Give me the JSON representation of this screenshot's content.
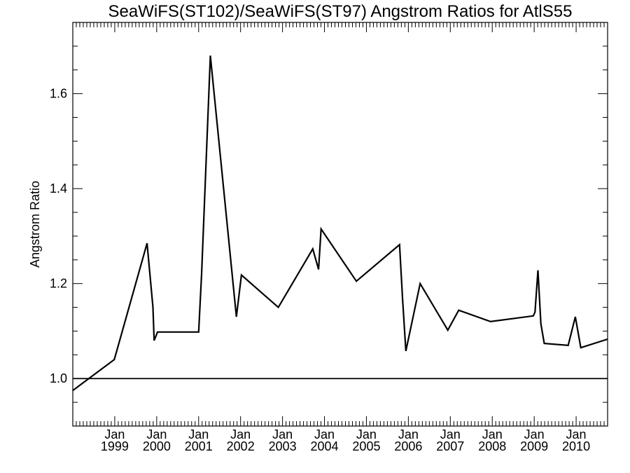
{
  "chart_data": {
    "type": "line",
    "title": "SeaWiFS(ST102)/SeaWiFS(ST97)  Angstrom Ratios for AtlS55",
    "xlabel": "",
    "ylabel": "Angstrom Ratio",
    "xlim": [
      1998.0,
      2010.75
    ],
    "ylim": [
      0.9,
      1.75
    ],
    "x_tick_labels": [
      {
        "month": "Jan",
        "year": "1999",
        "x": 1999.0
      },
      {
        "month": "Jan",
        "year": "2000",
        "x": 2000.0
      },
      {
        "month": "Jan",
        "year": "2001",
        "x": 2001.0
      },
      {
        "month": "Jan",
        "year": "2002",
        "x": 2002.0
      },
      {
        "month": "Jan",
        "year": "2003",
        "x": 2003.0
      },
      {
        "month": "Jan",
        "year": "2004",
        "x": 2004.0
      },
      {
        "month": "Jan",
        "year": "2005",
        "x": 2005.0
      },
      {
        "month": "Jan",
        "year": "2006",
        "x": 2006.0
      },
      {
        "month": "Jan",
        "year": "2007",
        "x": 2007.0
      },
      {
        "month": "Jan",
        "year": "2008",
        "x": 2008.0
      },
      {
        "month": "Jan",
        "year": "2009",
        "x": 2009.0
      },
      {
        "month": "Jan",
        "year": "2010",
        "x": 2010.0
      }
    ],
    "y_ticks": [
      1.0,
      1.2,
      1.4,
      1.6
    ],
    "y_tick_labels": [
      "1.0",
      "1.2",
      "1.4",
      "1.6"
    ],
    "y_minor_step": 0.05,
    "reference_line": {
      "y": 1.0
    },
    "series": [
      {
        "color": "#000000",
        "x": [
          1998.0,
          1998.99,
          1999.77,
          1999.91,
          1999.94,
          2000.02,
          2001.0,
          2001.07,
          2001.28,
          2001.9,
          2002.02,
          2002.9,
          2003.72,
          2003.86,
          2003.92,
          2004.76,
          2005.79,
          2005.86,
          2005.94,
          2006.28,
          2006.94,
          2007.2,
          2007.96,
          2008.98,
          2009.02,
          2009.09,
          2009.16,
          2009.24,
          2009.81,
          2009.98,
          2010.11,
          2010.75
        ],
        "y": [
          0.975,
          1.04,
          1.285,
          1.15,
          1.08,
          1.098,
          1.098,
          1.22,
          1.68,
          1.13,
          1.218,
          1.15,
          1.273,
          1.23,
          1.315,
          1.205,
          1.282,
          1.17,
          1.058,
          1.2,
          1.102,
          1.144,
          1.12,
          1.132,
          1.14,
          1.228,
          1.115,
          1.074,
          1.07,
          1.13,
          1.065,
          1.083
        ]
      }
    ]
  }
}
